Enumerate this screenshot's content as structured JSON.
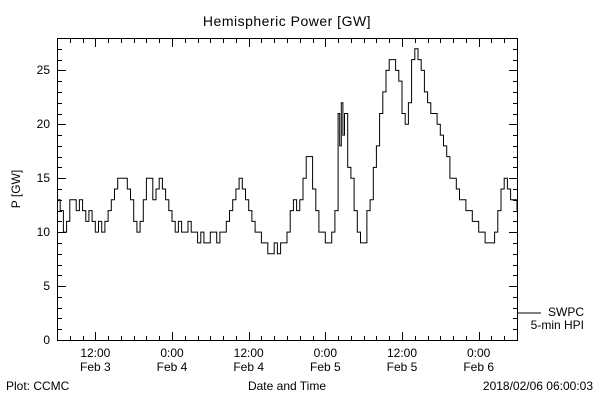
{
  "colors": {
    "foreground": "#000000",
    "background": "#ffffff"
  },
  "footer": {
    "left": "Plot: CCMC",
    "right": "2018/02/06 06:00:03"
  },
  "chart_data": {
    "type": "line",
    "title": "Hemispheric Power [GW]",
    "xlabel": "Date and Time",
    "ylabel": "P [GW]",
    "ylim": [
      0,
      28
    ],
    "grid": false,
    "legend": {
      "source": "SWPC",
      "series": "5-min HPI",
      "position": "right-outside"
    },
    "x_hours_range": [
      0,
      72
    ],
    "x_minor_step_hours": 2,
    "y_minor_step": 1,
    "y_major_ticks": [
      0,
      5,
      10,
      15,
      20,
      25
    ],
    "x_major_ticks": [
      {
        "hour": 6,
        "time": "12:00",
        "date": "Feb 3"
      },
      {
        "hour": 18,
        "time": "0:00",
        "date": "Feb 4"
      },
      {
        "hour": 30,
        "time": "12:00",
        "date": "Feb 4"
      },
      {
        "hour": 42,
        "time": "0:00",
        "date": "Feb 5"
      },
      {
        "hour": 54,
        "time": "12:00",
        "date": "Feb 5"
      },
      {
        "hour": 66,
        "time": "0:00",
        "date": "Feb 6"
      }
    ],
    "series": [
      {
        "name": "SWPC 5-min HPI",
        "color": "#000000",
        "step": true,
        "points": [
          [
            0,
            13
          ],
          [
            0.5,
            12
          ],
          [
            1,
            10
          ],
          [
            1.5,
            11
          ],
          [
            2,
            13
          ],
          [
            2.5,
            13
          ],
          [
            3,
            12
          ],
          [
            3.5,
            13
          ],
          [
            4,
            12
          ],
          [
            4.5,
            11
          ],
          [
            5,
            12
          ],
          [
            5.5,
            11
          ],
          [
            6,
            10
          ],
          [
            6.5,
            11
          ],
          [
            7,
            10
          ],
          [
            7.5,
            11
          ],
          [
            8,
            12
          ],
          [
            8.5,
            13
          ],
          [
            9,
            14
          ],
          [
            9.5,
            15
          ],
          [
            10,
            15
          ],
          [
            10.5,
            15
          ],
          [
            11,
            14
          ],
          [
            11.5,
            13
          ],
          [
            12,
            11
          ],
          [
            12.5,
            10
          ],
          [
            13,
            11
          ],
          [
            13.5,
            13
          ],
          [
            14,
            15
          ],
          [
            14.5,
            15
          ],
          [
            15,
            13
          ],
          [
            15.5,
            14
          ],
          [
            16,
            15
          ],
          [
            16.5,
            14
          ],
          [
            17,
            13
          ],
          [
            17.5,
            12
          ],
          [
            18,
            11
          ],
          [
            18.5,
            10
          ],
          [
            19,
            11
          ],
          [
            19.5,
            10
          ],
          [
            20,
            10
          ],
          [
            20.5,
            11
          ],
          [
            21,
            10
          ],
          [
            21.5,
            10
          ],
          [
            22,
            9
          ],
          [
            22.5,
            10
          ],
          [
            23,
            9
          ],
          [
            23.5,
            9
          ],
          [
            24,
            10
          ],
          [
            24.5,
            10
          ],
          [
            25,
            9
          ],
          [
            25.5,
            10
          ],
          [
            26,
            10
          ],
          [
            26.5,
            11
          ],
          [
            27,
            12
          ],
          [
            27.5,
            13
          ],
          [
            28,
            14
          ],
          [
            28.5,
            15
          ],
          [
            29,
            14
          ],
          [
            29.5,
            13
          ],
          [
            30,
            12
          ],
          [
            30.5,
            11
          ],
          [
            31,
            10
          ],
          [
            31.5,
            10
          ],
          [
            32,
            9
          ],
          [
            32.5,
            9
          ],
          [
            33,
            8
          ],
          [
            33.5,
            8
          ],
          [
            34,
            9
          ],
          [
            34.5,
            8
          ],
          [
            35,
            9
          ],
          [
            35.5,
            9
          ],
          [
            36,
            10
          ],
          [
            36.5,
            12
          ],
          [
            37,
            13
          ],
          [
            37.5,
            12
          ],
          [
            38,
            13
          ],
          [
            38.5,
            15
          ],
          [
            39,
            17
          ],
          [
            39.5,
            17
          ],
          [
            40,
            14
          ],
          [
            40.5,
            12
          ],
          [
            41,
            10
          ],
          [
            41.5,
            10
          ],
          [
            42,
            9
          ],
          [
            42.5,
            9
          ],
          [
            43,
            10
          ],
          [
            43.5,
            12
          ],
          [
            44,
            21
          ],
          [
            44.25,
            18
          ],
          [
            44.5,
            22
          ],
          [
            44.75,
            19
          ],
          [
            45,
            21
          ],
          [
            45.5,
            16
          ],
          [
            46,
            15
          ],
          [
            46.5,
            12
          ],
          [
            47,
            10
          ],
          [
            47.5,
            9
          ],
          [
            48,
            9
          ],
          [
            48.5,
            12
          ],
          [
            49,
            13
          ],
          [
            49.5,
            16
          ],
          [
            50,
            18
          ],
          [
            50.5,
            21
          ],
          [
            51,
            23
          ],
          [
            51.5,
            25
          ],
          [
            52,
            26
          ],
          [
            52.5,
            26
          ],
          [
            53,
            25
          ],
          [
            53.5,
            24
          ],
          [
            54,
            21
          ],
          [
            54.5,
            20
          ],
          [
            55,
            22
          ],
          [
            55.5,
            26
          ],
          [
            56,
            27
          ],
          [
            56.5,
            26
          ],
          [
            57,
            25
          ],
          [
            57.5,
            23
          ],
          [
            58,
            22
          ],
          [
            58.5,
            21
          ],
          [
            59,
            21
          ],
          [
            59.5,
            20
          ],
          [
            60,
            19
          ],
          [
            60.5,
            18
          ],
          [
            61,
            17
          ],
          [
            61.5,
            15
          ],
          [
            62,
            15
          ],
          [
            62.5,
            14
          ],
          [
            63,
            13
          ],
          [
            63.5,
            13
          ],
          [
            64,
            12
          ],
          [
            64.5,
            12
          ],
          [
            65,
            11
          ],
          [
            65.5,
            11
          ],
          [
            66,
            10
          ],
          [
            66.5,
            10
          ],
          [
            67,
            9
          ],
          [
            67.5,
            9
          ],
          [
            68,
            9
          ],
          [
            68.5,
            10
          ],
          [
            69,
            12
          ],
          [
            69.5,
            14
          ],
          [
            70,
            15
          ],
          [
            70.5,
            14
          ],
          [
            71,
            13
          ],
          [
            71.5,
            13
          ],
          [
            72,
            12
          ]
        ]
      }
    ]
  }
}
